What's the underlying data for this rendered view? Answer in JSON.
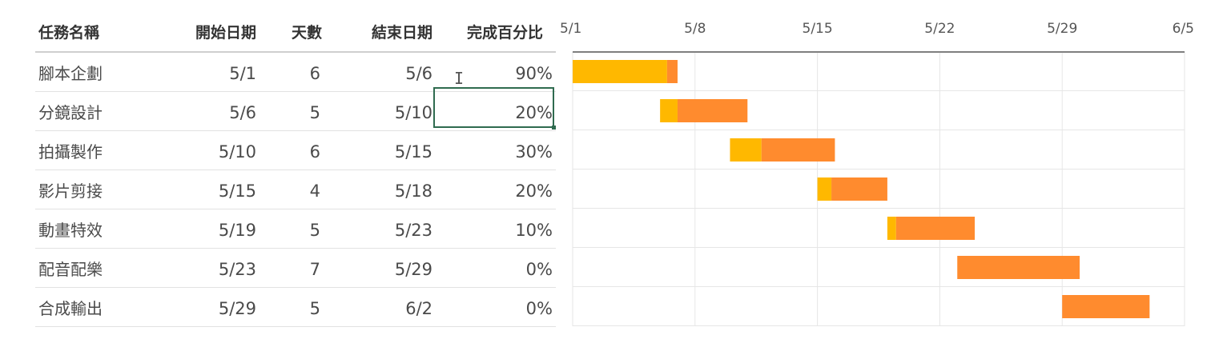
{
  "table": {
    "headers": {
      "name": "任務名稱",
      "start": "開始日期",
      "days": "天數",
      "end": "結束日期",
      "pct": "完成百分比"
    },
    "rows": [
      {
        "name": "腳本企劃",
        "start": "5/1",
        "days": "6",
        "end": "5/6",
        "pct": "90%"
      },
      {
        "name": "分鏡設計",
        "start": "5/6",
        "days": "5",
        "end": "5/10",
        "pct": "20%"
      },
      {
        "name": "拍攝製作",
        "start": "5/10",
        "days": "6",
        "end": "5/15",
        "pct": "30%"
      },
      {
        "name": "影片剪接",
        "start": "5/15",
        "days": "4",
        "end": "5/18",
        "pct": "20%"
      },
      {
        "name": "動畫特效",
        "start": "5/19",
        "days": "5",
        "end": "5/23",
        "pct": "10%"
      },
      {
        "name": "配音配樂",
        "start": "5/23",
        "days": "7",
        "end": "5/29",
        "pct": "0%"
      },
      {
        "name": "合成輸出",
        "start": "5/29",
        "days": "5",
        "end": "6/2",
        "pct": "0%"
      }
    ]
  },
  "cursor_glyph": "I",
  "chart_data": {
    "type": "bar",
    "orientation": "horizontal-stacked",
    "x_tick_labels": [
      "5/1",
      "5/8",
      "5/15",
      "5/22",
      "5/29",
      "6/5"
    ],
    "x_range": [
      "5/1",
      "6/5"
    ],
    "grid": true,
    "tasks": [
      {
        "start": "5/1",
        "done_days": 5.4,
        "remaining_days": 0.6
      },
      {
        "start": "5/6",
        "done_days": 1.0,
        "remaining_days": 4.0
      },
      {
        "start": "5/10",
        "done_days": 1.8,
        "remaining_days": 4.2
      },
      {
        "start": "5/15",
        "done_days": 0.8,
        "remaining_days": 3.2
      },
      {
        "start": "5/19",
        "done_days": 0.5,
        "remaining_days": 4.5
      },
      {
        "start": "5/23",
        "done_days": 0,
        "remaining_days": 7
      },
      {
        "start": "5/29",
        "done_days": 0,
        "remaining_days": 5
      }
    ],
    "colors": {
      "done": "#FFB800",
      "remaining": "#FF8B2E",
      "grid": "#e6e6e6",
      "axis": "#7f7f7f",
      "tick_text": "#555555"
    }
  }
}
